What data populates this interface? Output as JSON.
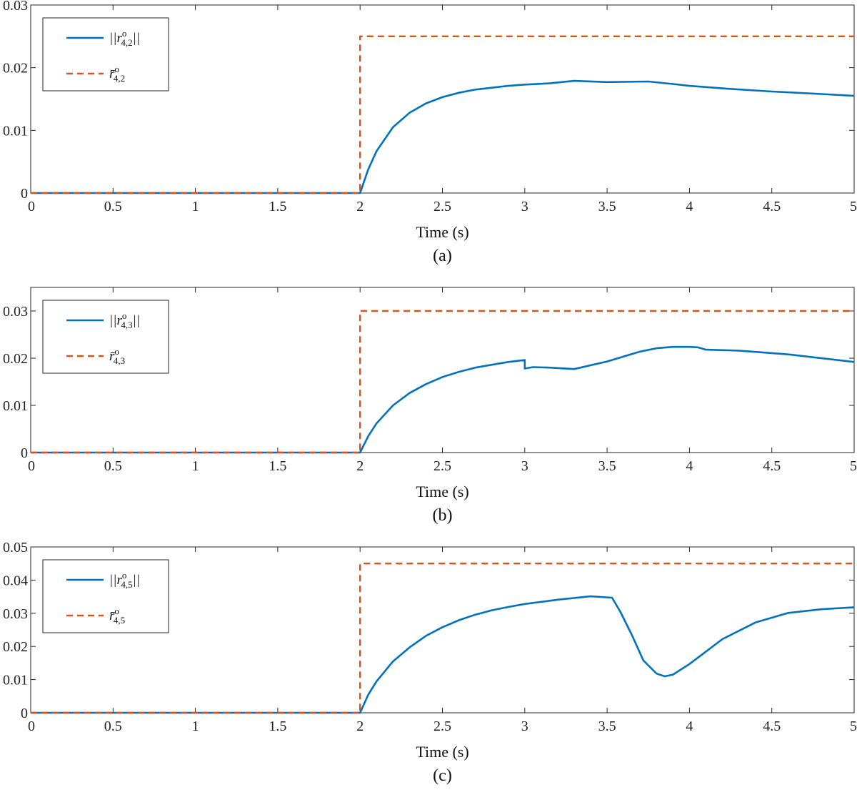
{
  "chart_data": [
    {
      "type": "line",
      "caption": "(a)",
      "xlabel": "Time (s)",
      "ylabel": "",
      "xlim": [
        0,
        5
      ],
      "ylim": [
        0,
        0.03
      ],
      "xticks": [
        "0",
        "0.5",
        "1",
        "1.5",
        "2",
        "2.5",
        "3",
        "3.5",
        "4",
        "4.5",
        "5"
      ],
      "yticks": [
        "0",
        "0.01",
        "0.02",
        "0.03"
      ],
      "grid": false,
      "legend_position": "top-left",
      "series": [
        {
          "name": "||r^o_{4,2}||",
          "legend": {
            "base": "||r",
            "sup": "o",
            "sub": "4,2",
            "tail": "||"
          },
          "style": "solid",
          "color": "#0072BD",
          "x": [
            0,
            2,
            2.05,
            2.1,
            2.2,
            2.3,
            2.4,
            2.5,
            2.6,
            2.7,
            2.8,
            2.9,
            3.0,
            3.15,
            3.3,
            3.5,
            3.75,
            3.9,
            4.0,
            4.2,
            4.5,
            4.8,
            5.0
          ],
          "y": [
            0,
            0,
            0.0038,
            0.0067,
            0.0105,
            0.0128,
            0.0143,
            0.0153,
            0.016,
            0.0165,
            0.0168,
            0.0171,
            0.0173,
            0.0175,
            0.0179,
            0.0177,
            0.0178,
            0.0174,
            0.0171,
            0.0167,
            0.0162,
            0.0158,
            0.0155
          ]
        },
        {
          "name": "r̄^o_{4,2}",
          "legend": {
            "base": "r̄",
            "sup": "o",
            "sub": "4,2",
            "tail": ""
          },
          "style": "dashed",
          "color": "#D95319",
          "x": [
            0,
            2,
            2,
            5
          ],
          "y": [
            0,
            0,
            0.025,
            0.025
          ]
        }
      ]
    },
    {
      "type": "line",
      "caption": "(b)",
      "xlabel": "Time (s)",
      "ylabel": "",
      "xlim": [
        0,
        5
      ],
      "ylim": [
        0,
        0.035
      ],
      "xticks": [
        "0",
        "0.5",
        "1",
        "1.5",
        "2",
        "2.5",
        "3",
        "3.5",
        "4",
        "4.5",
        "5"
      ],
      "yticks": [
        "0",
        "0.01",
        "0.02",
        "0.03"
      ],
      "grid": false,
      "legend_position": "top-left",
      "series": [
        {
          "name": "||r^o_{4,3}||",
          "legend": {
            "base": "||r",
            "sup": "o",
            "sub": "4,3",
            "tail": "||"
          },
          "style": "solid",
          "color": "#0072BD",
          "x": [
            0,
            2,
            2.05,
            2.1,
            2.2,
            2.3,
            2.4,
            2.5,
            2.6,
            2.7,
            2.8,
            2.9,
            3.0,
            3.0,
            3.05,
            3.15,
            3.3,
            3.5,
            3.7,
            3.8,
            3.9,
            4.0,
            4.05,
            4.1,
            4.3,
            4.6,
            5.0
          ],
          "y": [
            0,
            0,
            0.0035,
            0.0062,
            0.01,
            0.0126,
            0.0145,
            0.016,
            0.0171,
            0.018,
            0.0186,
            0.0192,
            0.0196,
            0.0178,
            0.0181,
            0.018,
            0.0177,
            0.0193,
            0.0214,
            0.0221,
            0.0224,
            0.0224,
            0.0223,
            0.0218,
            0.0216,
            0.0208,
            0.0192
          ]
        },
        {
          "name": "r̄^o_{4,3}",
          "legend": {
            "base": "r̄",
            "sup": "o",
            "sub": "4,3",
            "tail": ""
          },
          "style": "dashed",
          "color": "#D95319",
          "x": [
            0,
            2,
            2,
            5
          ],
          "y": [
            0,
            0,
            0.03,
            0.03
          ]
        }
      ]
    },
    {
      "type": "line",
      "caption": "(c)",
      "xlabel": "Time (s)",
      "ylabel": "",
      "xlim": [
        0,
        5
      ],
      "ylim": [
        0,
        0.05
      ],
      "xticks": [
        "0",
        "0.5",
        "1",
        "1.5",
        "2",
        "2.5",
        "3",
        "3.5",
        "4",
        "4.5",
        "5"
      ],
      "yticks": [
        "0",
        "0.01",
        "0.02",
        "0.03",
        "0.04",
        "0.05"
      ],
      "grid": false,
      "legend_position": "top-left",
      "series": [
        {
          "name": "||r^o_{4,5}||",
          "legend": {
            "base": "||r",
            "sup": "o",
            "sub": "4,5",
            "tail": "||"
          },
          "style": "solid",
          "color": "#0072BD",
          "x": [
            0,
            2,
            2.05,
            2.1,
            2.2,
            2.3,
            2.4,
            2.5,
            2.6,
            2.7,
            2.8,
            2.9,
            3.0,
            3.2,
            3.4,
            3.53,
            3.58,
            3.65,
            3.72,
            3.8,
            3.85,
            3.9,
            4.0,
            4.2,
            4.4,
            4.6,
            4.8,
            5.0
          ],
          "y": [
            0,
            0,
            0.0055,
            0.0095,
            0.0155,
            0.0197,
            0.0232,
            0.0258,
            0.0279,
            0.0296,
            0.0309,
            0.0319,
            0.0328,
            0.0341,
            0.0351,
            0.0347,
            0.0305,
            0.0235,
            0.0158,
            0.0118,
            0.011,
            0.0115,
            0.0147,
            0.0222,
            0.0272,
            0.0301,
            0.0312,
            0.0318
          ]
        },
        {
          "name": "r̄^o_{4,5}",
          "legend": {
            "base": "r̄",
            "sup": "o",
            "sub": "4,5",
            "tail": ""
          },
          "style": "dashed",
          "color": "#D95319",
          "x": [
            0,
            2,
            2,
            5
          ],
          "y": [
            0,
            0,
            0.045,
            0.045
          ]
        }
      ]
    }
  ]
}
